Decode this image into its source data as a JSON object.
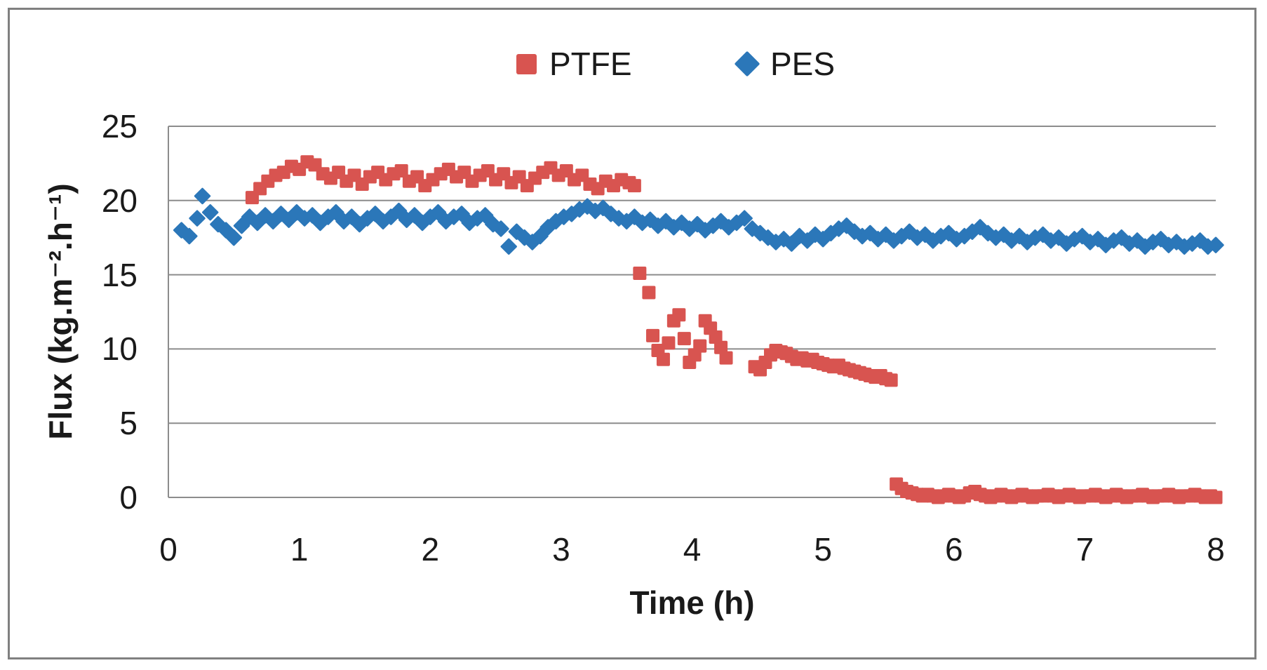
{
  "chart_data": {
    "type": "scatter",
    "title": "",
    "xlabel": "Time (h)",
    "ylabel": "Flux (kg.m⁻².h⁻¹)",
    "xlim": [
      0,
      8
    ],
    "ylim": [
      0,
      25
    ],
    "x_ticks": [
      0,
      1,
      2,
      3,
      4,
      5,
      6,
      7,
      8
    ],
    "x_tick_labels": [
      "0",
      "1",
      "2",
      "3",
      "4",
      "5",
      "6",
      "7",
      "8"
    ],
    "y_ticks": [
      25,
      20,
      15,
      10,
      5,
      0
    ],
    "y_tick_labels": [
      "25",
      "20",
      "15",
      "10",
      "5",
      "0"
    ],
    "grid": "horizontal",
    "legend_position": "top-center",
    "colors": {
      "ptfe": "#d85450",
      "pes": "#2b77b9",
      "grid": "#8c8c8c",
      "text": "#1a1a1a",
      "figure_border": "#808080"
    },
    "series": [
      {
        "name": "PTFE",
        "marker": "square",
        "color": "#d85450",
        "points": [
          [
            0.64,
            20.2
          ],
          [
            0.7,
            20.8
          ],
          [
            0.76,
            21.3
          ],
          [
            0.82,
            21.7
          ],
          [
            0.88,
            21.9
          ],
          [
            0.94,
            22.3
          ],
          [
            1.0,
            22.1
          ],
          [
            1.06,
            22.6
          ],
          [
            1.12,
            22.4
          ],
          [
            1.18,
            21.8
          ],
          [
            1.24,
            21.5
          ],
          [
            1.3,
            21.9
          ],
          [
            1.36,
            21.3
          ],
          [
            1.42,
            21.7
          ],
          [
            1.48,
            21.1
          ],
          [
            1.54,
            21.6
          ],
          [
            1.6,
            21.9
          ],
          [
            1.66,
            21.4
          ],
          [
            1.72,
            21.8
          ],
          [
            1.78,
            22.0
          ],
          [
            1.84,
            21.3
          ],
          [
            1.9,
            21.6
          ],
          [
            1.96,
            21.0
          ],
          [
            2.02,
            21.4
          ],
          [
            2.08,
            21.8
          ],
          [
            2.14,
            22.1
          ],
          [
            2.2,
            21.6
          ],
          [
            2.26,
            21.9
          ],
          [
            2.32,
            21.3
          ],
          [
            2.38,
            21.7
          ],
          [
            2.44,
            22.0
          ],
          [
            2.5,
            21.4
          ],
          [
            2.56,
            21.8
          ],
          [
            2.62,
            21.2
          ],
          [
            2.68,
            21.6
          ],
          [
            2.74,
            21.0
          ],
          [
            2.8,
            21.5
          ],
          [
            2.86,
            21.9
          ],
          [
            2.92,
            22.2
          ],
          [
            2.98,
            21.7
          ],
          [
            3.04,
            22.0
          ],
          [
            3.1,
            21.4
          ],
          [
            3.16,
            21.7
          ],
          [
            3.22,
            21.1
          ],
          [
            3.28,
            20.8
          ],
          [
            3.34,
            21.3
          ],
          [
            3.4,
            21.0
          ],
          [
            3.46,
            21.4
          ],
          [
            3.52,
            21.2
          ],
          [
            3.56,
            21.0
          ],
          [
            3.6,
            15.1
          ],
          [
            3.67,
            13.8
          ],
          [
            3.7,
            10.9
          ],
          [
            3.74,
            9.9
          ],
          [
            3.78,
            9.3
          ],
          [
            3.82,
            10.4
          ],
          [
            3.86,
            11.9
          ],
          [
            3.9,
            12.3
          ],
          [
            3.94,
            10.7
          ],
          [
            3.98,
            9.1
          ],
          [
            4.02,
            9.6
          ],
          [
            4.06,
            10.2
          ],
          [
            4.1,
            11.9
          ],
          [
            4.14,
            11.4
          ],
          [
            4.18,
            10.8
          ],
          [
            4.22,
            10.1
          ],
          [
            4.26,
            9.4
          ],
          [
            4.48,
            8.8
          ],
          [
            4.52,
            8.6
          ],
          [
            4.56,
            9.1
          ],
          [
            4.6,
            9.6
          ],
          [
            4.64,
            9.9
          ],
          [
            4.68,
            9.8
          ],
          [
            4.72,
            9.7
          ],
          [
            4.76,
            9.5
          ],
          [
            4.8,
            9.3
          ],
          [
            4.84,
            9.4
          ],
          [
            4.88,
            9.2
          ],
          [
            4.92,
            9.3
          ],
          [
            4.96,
            9.1
          ],
          [
            5.0,
            9.0
          ],
          [
            5.04,
            8.9
          ],
          [
            5.08,
            8.8
          ],
          [
            5.12,
            8.9
          ],
          [
            5.16,
            8.7
          ],
          [
            5.2,
            8.6
          ],
          [
            5.24,
            8.5
          ],
          [
            5.28,
            8.4
          ],
          [
            5.32,
            8.3
          ],
          [
            5.36,
            8.2
          ],
          [
            5.4,
            8.1
          ],
          [
            5.44,
            8.2
          ],
          [
            5.48,
            8.0
          ],
          [
            5.52,
            7.9
          ],
          [
            5.56,
            0.9
          ],
          [
            5.6,
            0.6
          ],
          [
            5.64,
            0.4
          ],
          [
            5.68,
            0.3
          ],
          [
            5.72,
            0.2
          ],
          [
            5.76,
            0.1
          ],
          [
            5.8,
            0.2
          ],
          [
            5.84,
            0.1
          ],
          [
            5.88,
            0
          ],
          [
            5.92,
            0.1
          ],
          [
            5.96,
            0.2
          ],
          [
            6.0,
            0.1
          ],
          [
            6.04,
            0
          ],
          [
            6.08,
            0.1
          ],
          [
            6.12,
            0.3
          ],
          [
            6.16,
            0.4
          ],
          [
            6.2,
            0.2
          ],
          [
            6.24,
            0.1
          ],
          [
            6.28,
            0
          ],
          [
            6.32,
            0.1
          ],
          [
            6.36,
            0.2
          ],
          [
            6.4,
            0.1
          ],
          [
            6.44,
            0
          ],
          [
            6.48,
            0.1
          ],
          [
            6.52,
            0.2
          ],
          [
            6.56,
            0.1
          ],
          [
            6.6,
            0
          ],
          [
            6.64,
            0.1
          ],
          [
            6.68,
            0.1
          ],
          [
            6.72,
            0.2
          ],
          [
            6.76,
            0.1
          ],
          [
            6.8,
            0
          ],
          [
            6.84,
            0.1
          ],
          [
            6.88,
            0.2
          ],
          [
            6.92,
            0.1
          ],
          [
            6.96,
            0
          ],
          [
            7.0,
            0.1
          ],
          [
            7.04,
            0.1
          ],
          [
            7.08,
            0.2
          ],
          [
            7.12,
            0.1
          ],
          [
            7.16,
            0
          ],
          [
            7.2,
            0.1
          ],
          [
            7.24,
            0.2
          ],
          [
            7.28,
            0.1
          ],
          [
            7.32,
            0
          ],
          [
            7.36,
            0.1
          ],
          [
            7.4,
            0.1
          ],
          [
            7.44,
            0.2
          ],
          [
            7.48,
            0.1
          ],
          [
            7.52,
            0
          ],
          [
            7.56,
            0.1
          ],
          [
            7.6,
            0.1
          ],
          [
            7.64,
            0.2
          ],
          [
            7.68,
            0.1
          ],
          [
            7.72,
            0
          ],
          [
            7.76,
            0.1
          ],
          [
            7.8,
            0.1
          ],
          [
            7.84,
            0.2
          ],
          [
            7.88,
            0.1
          ],
          [
            7.92,
            0
          ],
          [
            7.96,
            0.1
          ],
          [
            8.0,
            0
          ]
        ]
      },
      {
        "name": "PES",
        "marker": "diamond",
        "color": "#2b77b9",
        "points": [
          [
            0.1,
            18.0
          ],
          [
            0.16,
            17.6
          ],
          [
            0.22,
            18.8
          ],
          [
            0.26,
            20.3
          ],
          [
            0.32,
            19.2
          ],
          [
            0.38,
            18.4
          ],
          [
            0.44,
            18.0
          ],
          [
            0.5,
            17.5
          ],
          [
            0.56,
            18.3
          ],
          [
            0.62,
            18.9
          ],
          [
            0.68,
            18.5
          ],
          [
            0.74,
            19.0
          ],
          [
            0.8,
            18.6
          ],
          [
            0.86,
            19.1
          ],
          [
            0.92,
            18.7
          ],
          [
            0.98,
            19.2
          ],
          [
            1.04,
            18.8
          ],
          [
            1.1,
            19.0
          ],
          [
            1.16,
            18.5
          ],
          [
            1.22,
            18.9
          ],
          [
            1.28,
            19.2
          ],
          [
            1.34,
            18.6
          ],
          [
            1.4,
            18.9
          ],
          [
            1.46,
            18.4
          ],
          [
            1.52,
            18.8
          ],
          [
            1.58,
            19.1
          ],
          [
            1.64,
            18.6
          ],
          [
            1.7,
            18.9
          ],
          [
            1.76,
            19.3
          ],
          [
            1.82,
            18.7
          ],
          [
            1.88,
            19.0
          ],
          [
            1.94,
            18.5
          ],
          [
            2.0,
            18.9
          ],
          [
            2.06,
            19.2
          ],
          [
            2.12,
            18.6
          ],
          [
            2.18,
            18.9
          ],
          [
            2.24,
            19.1
          ],
          [
            2.3,
            18.5
          ],
          [
            2.36,
            18.8
          ],
          [
            2.42,
            19.0
          ],
          [
            2.48,
            18.4
          ],
          [
            2.54,
            18.1
          ],
          [
            2.6,
            16.9
          ],
          [
            2.66,
            17.9
          ],
          [
            2.72,
            17.5
          ],
          [
            2.78,
            17.2
          ],
          [
            2.84,
            17.6
          ],
          [
            2.9,
            18.2
          ],
          [
            2.96,
            18.6
          ],
          [
            3.02,
            18.9
          ],
          [
            3.08,
            19.1
          ],
          [
            3.14,
            19.4
          ],
          [
            3.2,
            19.6
          ],
          [
            3.26,
            19.3
          ],
          [
            3.32,
            19.5
          ],
          [
            3.38,
            19.1
          ],
          [
            3.44,
            18.8
          ],
          [
            3.5,
            18.6
          ],
          [
            3.56,
            18.9
          ],
          [
            3.62,
            18.5
          ],
          [
            3.68,
            18.7
          ],
          [
            3.74,
            18.3
          ],
          [
            3.8,
            18.6
          ],
          [
            3.86,
            18.2
          ],
          [
            3.92,
            18.5
          ],
          [
            3.98,
            18.1
          ],
          [
            4.04,
            18.4
          ],
          [
            4.1,
            18.0
          ],
          [
            4.16,
            18.3
          ],
          [
            4.22,
            18.6
          ],
          [
            4.28,
            18.2
          ],
          [
            4.34,
            18.5
          ],
          [
            4.4,
            18.8
          ],
          [
            4.46,
            18.1
          ],
          [
            4.52,
            17.8
          ],
          [
            4.58,
            17.5
          ],
          [
            4.64,
            17.2
          ],
          [
            4.7,
            17.4
          ],
          [
            4.76,
            17.1
          ],
          [
            4.82,
            17.6
          ],
          [
            4.88,
            17.3
          ],
          [
            4.94,
            17.7
          ],
          [
            5.0,
            17.4
          ],
          [
            5.06,
            17.8
          ],
          [
            5.12,
            18.1
          ],
          [
            5.18,
            18.3
          ],
          [
            5.24,
            17.9
          ],
          [
            5.3,
            17.6
          ],
          [
            5.36,
            17.8
          ],
          [
            5.42,
            17.4
          ],
          [
            5.48,
            17.7
          ],
          [
            5.54,
            17.3
          ],
          [
            5.6,
            17.6
          ],
          [
            5.66,
            17.9
          ],
          [
            5.72,
            17.5
          ],
          [
            5.78,
            17.7
          ],
          [
            5.84,
            17.3
          ],
          [
            5.9,
            17.6
          ],
          [
            5.96,
            17.8
          ],
          [
            6.02,
            17.4
          ],
          [
            6.08,
            17.6
          ],
          [
            6.14,
            17.9
          ],
          [
            6.2,
            18.2
          ],
          [
            6.26,
            17.8
          ],
          [
            6.32,
            17.5
          ],
          [
            6.38,
            17.7
          ],
          [
            6.44,
            17.3
          ],
          [
            6.5,
            17.6
          ],
          [
            6.56,
            17.2
          ],
          [
            6.62,
            17.5
          ],
          [
            6.68,
            17.7
          ],
          [
            6.74,
            17.3
          ],
          [
            6.8,
            17.5
          ],
          [
            6.86,
            17.1
          ],
          [
            6.92,
            17.4
          ],
          [
            6.98,
            17.6
          ],
          [
            7.04,
            17.2
          ],
          [
            7.1,
            17.4
          ],
          [
            7.16,
            17.0
          ],
          [
            7.22,
            17.3
          ],
          [
            7.28,
            17.5
          ],
          [
            7.34,
            17.1
          ],
          [
            7.4,
            17.3
          ],
          [
            7.46,
            16.9
          ],
          [
            7.52,
            17.2
          ],
          [
            7.58,
            17.4
          ],
          [
            7.64,
            17.0
          ],
          [
            7.7,
            17.2
          ],
          [
            7.76,
            16.9
          ],
          [
            7.82,
            17.1
          ],
          [
            7.88,
            17.3
          ],
          [
            7.94,
            16.9
          ],
          [
            8.0,
            17.0
          ]
        ]
      }
    ]
  }
}
